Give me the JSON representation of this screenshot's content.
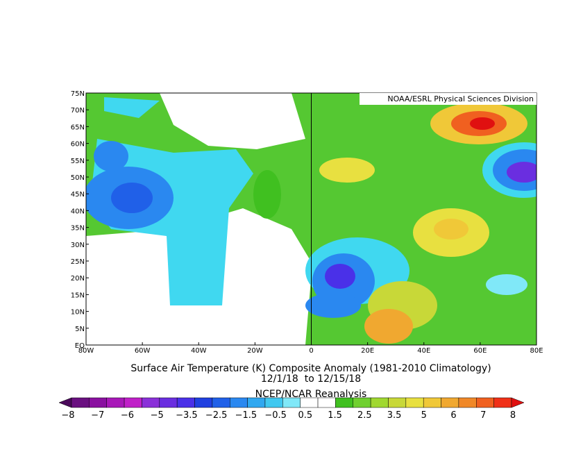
{
  "map": {
    "attribution": "NOAA/ESRL Physical Sciences Division",
    "lat_labels": [
      "75N",
      "70N",
      "65N",
      "60N",
      "55N",
      "50N",
      "45N",
      "40N",
      "35N",
      "30N",
      "25N",
      "20N",
      "15N",
      "10N",
      "5N",
      "EQ"
    ],
    "lon_labels": [
      "80W",
      "60W",
      "40W",
      "20W",
      "0",
      "20E",
      "40E",
      "60E",
      "80E"
    ]
  },
  "caption": {
    "title": "Surface Air Temperature (K) Composite Anomaly (1981-2010 Climatology)",
    "dates": "12/1/18  to 12/15/18",
    "source": "NCEP/NCAR Reanalysis"
  },
  "colorbar": {
    "labels": [
      "−8",
      "−7",
      "−6",
      "−5",
      "−3.5",
      "−2.5",
      "−1.5",
      "−0.5",
      "0.5",
      "1.5",
      "2.5",
      "3.5",
      "5",
      "6",
      "7",
      "8"
    ],
    "colors": [
      "#4a0a5a",
      "#6a1080",
      "#8a10a0",
      "#a818b8",
      "#c020c8",
      "#8a30d8",
      "#6a2ee0",
      "#4a30e8",
      "#2040e0",
      "#2060e8",
      "#2a88f0",
      "#30a8f0",
      "#40c8f0",
      "#80e8f8",
      "#ffffff",
      "#ffffff",
      "#40c020",
      "#70d030",
      "#a0d830",
      "#c8d838",
      "#e8e040",
      "#f0c838",
      "#f0a830",
      "#f08828",
      "#f06020",
      "#f03018",
      "#e01010"
    ]
  }
}
